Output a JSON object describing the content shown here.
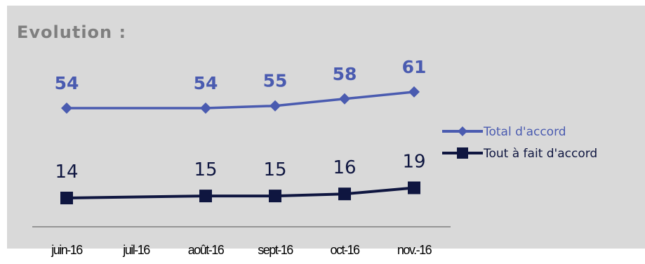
{
  "heading": "Evolution :",
  "colors": {
    "series_a": "#4a5bb0",
    "series_b": "#0f1640",
    "panel": "#d9d9d9",
    "heading": "#7f7f7f",
    "axis": "#7f7f7f"
  },
  "chart_data": {
    "type": "line",
    "categories": [
      "juin-16",
      "juil-16",
      "août-16",
      "sept-16",
      "oct-16",
      "nov.-16"
    ],
    "series": [
      {
        "name": "Total d'accord",
        "values": [
          54,
          null,
          54,
          55,
          58,
          61
        ],
        "marker": "diamond",
        "color": "#4a5bb0"
      },
      {
        "name": "Tout à fait d'accord",
        "values": [
          14,
          null,
          15,
          15,
          16,
          19
        ],
        "marker": "square",
        "color": "#0f1640"
      }
    ],
    "legend_position": "right",
    "grid": false,
    "data_labels": true
  }
}
